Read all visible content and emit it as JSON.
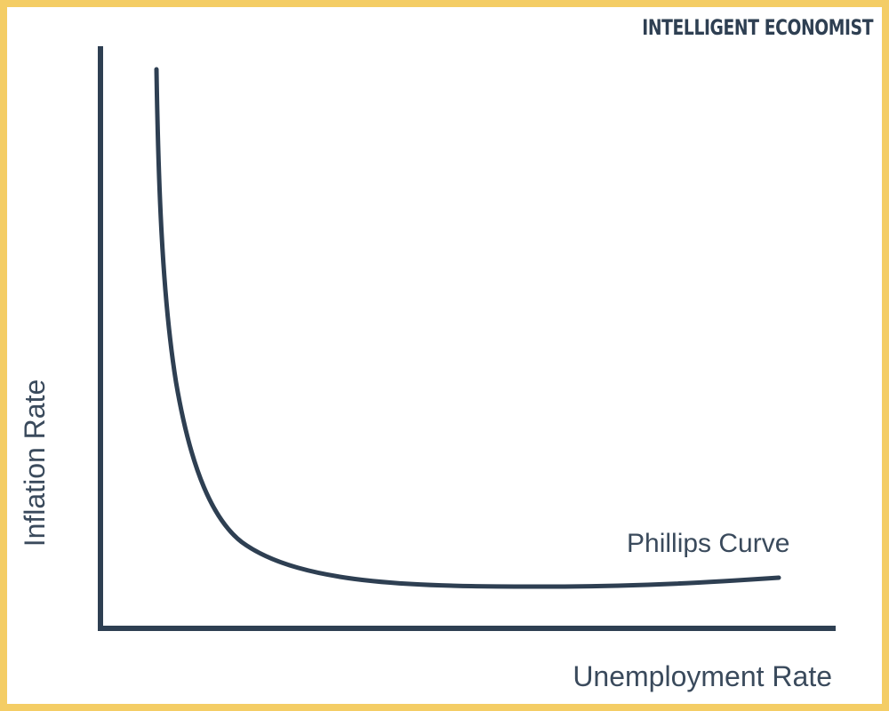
{
  "brand": {
    "name": "INTELLIGENT ECONOMIST"
  },
  "chart_data": {
    "type": "line",
    "title": "",
    "xlabel": "Unemployment Rate",
    "ylabel": "Inflation Rate",
    "series": [
      {
        "name": "Phillips Curve",
        "shape": "convex, downward-sloping curve that flattens at high unemployment"
      }
    ]
  },
  "colors": {
    "border": "#f4cd65",
    "ink": "#2e3f52",
    "text": "#3a4a5c",
    "background": "#ffffff"
  }
}
